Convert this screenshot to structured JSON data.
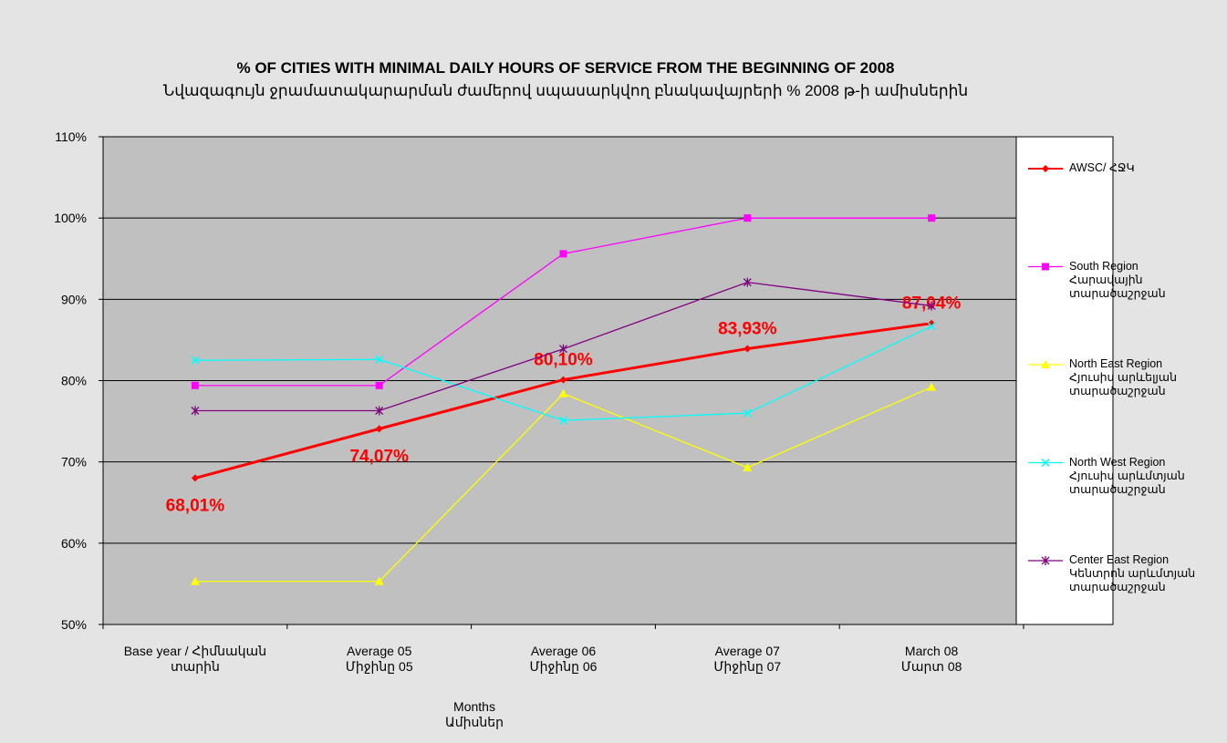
{
  "chart_data": {
    "type": "line",
    "title": "% OF CITIES WITH MINIMAL DAILY HOURS OF SERVICE FROM THE BEGINNING OF 2008",
    "subtitle": "Նվազագույն ջրամատակարարման ժամերով սպասարկվող բնակավայրերի % 2008 թ-ի  ամիսներին",
    "x_label": "Months\nԱմիսներ",
    "categories": [
      "Base year / Հիմնական\nտարին",
      "Average 05\nՄիջինը 05",
      "Average 06\nՄիջինը 06",
      "Average 07\nՄիջինը 07",
      "March 08\nՄարտ 08"
    ],
    "ylim": [
      50,
      110
    ],
    "yticks": [
      {
        "value": 50,
        "label": "50%"
      },
      {
        "value": 60,
        "label": "60%"
      },
      {
        "value": 70,
        "label": "70%"
      },
      {
        "value": 80,
        "label": "80%"
      },
      {
        "value": 90,
        "label": "90%"
      },
      {
        "value": 100,
        "label": "100%"
      },
      {
        "value": 110,
        "label": "110%"
      }
    ],
    "grid": true,
    "legend": "right",
    "series": [
      {
        "name": "AWSC/ ՀՋԿ",
        "color": "#ff0000",
        "marker": "diamond",
        "values": [
          68.01,
          74.07,
          80.1,
          83.93,
          87.04
        ],
        "value_labels": [
          "68,01%",
          "74,07%",
          "80,10%",
          "83,93%",
          "87,04%"
        ]
      },
      {
        "name": "South Region\nՀարավային\nտարածաշրջան",
        "color": "#ff00ff",
        "marker": "square",
        "values": [
          79.4,
          79.4,
          95.6,
          100,
          100
        ]
      },
      {
        "name": "North East Region\nՀյուսիս արևելյան\nտարածաշրջան",
        "color": "#ffff00",
        "marker": "triangle",
        "values": [
          55.3,
          55.3,
          78.4,
          69.3,
          79.2
        ]
      },
      {
        "name": "North West Region\nՀյուսիս արևմտյան\nտարածաշրջան",
        "color": "#00ffff",
        "marker": "x",
        "values": [
          82.5,
          82.6,
          75.1,
          76.0,
          86.7
        ]
      },
      {
        "name": "Center East Region\nԿենտրոն արևմտյան\nտարածաշրջան",
        "color": "#800080",
        "marker": "star",
        "values": [
          76.3,
          76.3,
          83.9,
          92.1,
          89.2
        ]
      }
    ]
  }
}
